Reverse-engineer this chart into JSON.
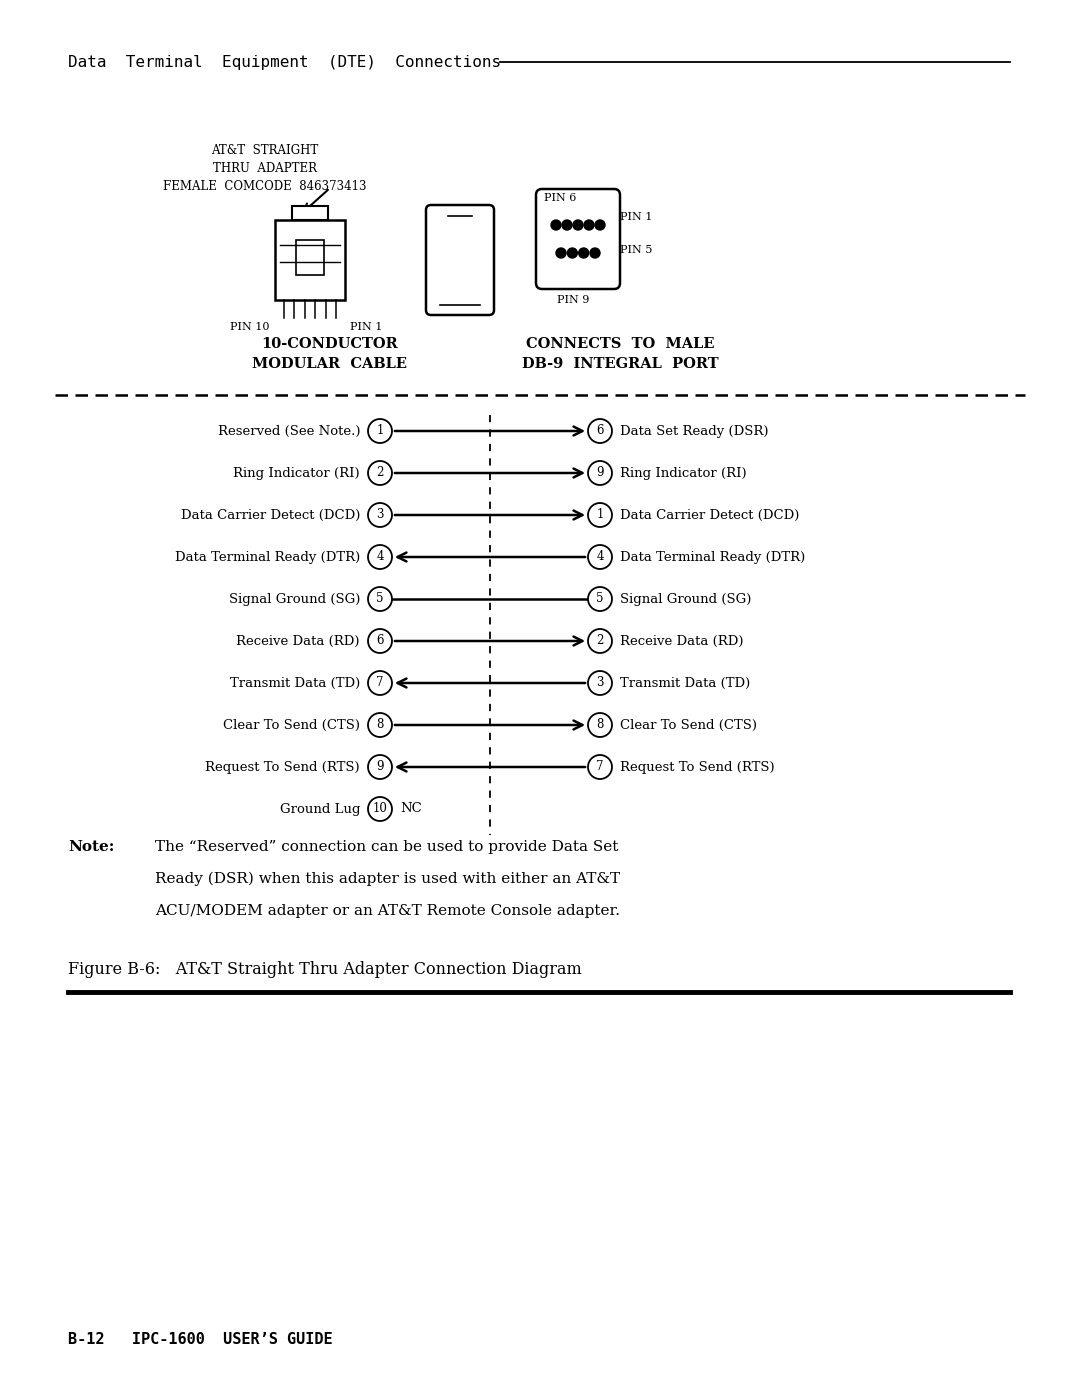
{
  "bg_color": "#ffffff",
  "header_text": "Data  Terminal  Equipment  (DTE)  Connections",
  "adapter_label_lines": [
    "AT&T  STRAIGHT",
    "THRU  ADAPTER",
    "FEMALE  COMCODE  846373413"
  ],
  "connections": [
    {
      "left_label": "Reserved (See Note.)",
      "left_pin": "1",
      "right_pin": "6",
      "right_label": "Data Set Ready (DSR)",
      "direction": "right"
    },
    {
      "left_label": "Ring Indicator (RI)",
      "left_pin": "2",
      "right_pin": "9",
      "right_label": "Ring Indicator (RI)",
      "direction": "right"
    },
    {
      "left_label": "Data Carrier Detect (DCD)",
      "left_pin": "3",
      "right_pin": "1",
      "right_label": "Data Carrier Detect (DCD)",
      "direction": "right"
    },
    {
      "left_label": "Data Terminal Ready (DTR)",
      "left_pin": "4",
      "right_pin": "4",
      "right_label": "Data Terminal Ready (DTR)",
      "direction": "left"
    },
    {
      "left_label": "Signal Ground (SG)",
      "left_pin": "5",
      "right_pin": "5",
      "right_label": "Signal Ground (SG)",
      "direction": "none"
    },
    {
      "left_label": "Receive Data (RD)",
      "left_pin": "6",
      "right_pin": "2",
      "right_label": "Receive Data (RD)",
      "direction": "right"
    },
    {
      "left_label": "Transmit Data (TD)",
      "left_pin": "7",
      "right_pin": "3",
      "right_label": "Transmit Data (TD)",
      "direction": "left"
    },
    {
      "left_label": "Clear To Send (CTS)",
      "left_pin": "8",
      "right_pin": "8",
      "right_label": "Clear To Send (CTS)",
      "direction": "right"
    },
    {
      "left_label": "Request To Send (RTS)",
      "left_pin": "9",
      "right_pin": "7",
      "right_label": "Request To Send (RTS)",
      "direction": "left"
    },
    {
      "left_label": "Ground Lug",
      "left_pin": "10",
      "right_pin": "NC",
      "right_label": "",
      "direction": "nc"
    }
  ],
  "note_bold": "Note:",
  "note_line1": "The “Reserved” connection can be used to provide Data Set",
  "note_line2": "Ready (DSR) when this adapter is used with either an AT&T",
  "note_line3": "ACU/MODEM adapter or an AT&T Remote Console adapter.",
  "figure_label": "Figure B-6:   AT&T Straight Thru Adapter Connection Diagram",
  "footer_text": "B-12   IPC-1600  USER’S GUIDE"
}
